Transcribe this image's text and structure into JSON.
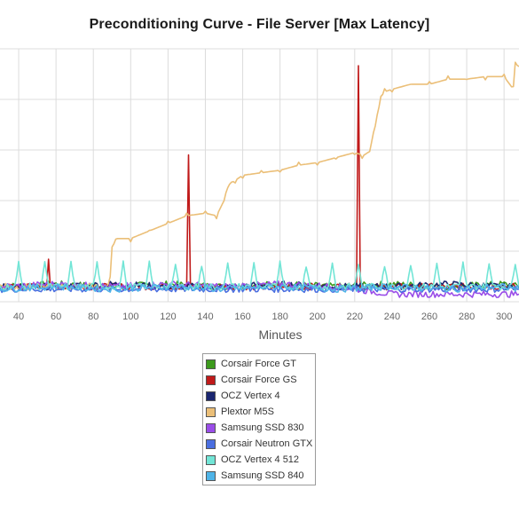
{
  "chart_data": {
    "type": "line",
    "title": "Preconditioning Curve - File Server [Max Latency]",
    "xlabel": "Minutes",
    "ylabel": "",
    "xlim": [
      30,
      308
    ],
    "ylim": [
      0,
      100
    ],
    "x_ticks": [
      40,
      60,
      80,
      100,
      120,
      140,
      160,
      180,
      200,
      220,
      240,
      260,
      280,
      300
    ],
    "grid": true,
    "legend_position": "bottom",
    "series": [
      {
        "name": "Corsair Force GT",
        "color": "#3c9a1c",
        "x": [
          30,
          60,
          90,
          120,
          150,
          180,
          210,
          240,
          270,
          300,
          308
        ],
        "y": [
          6,
          7,
          6,
          7,
          6,
          7,
          6,
          7,
          6,
          7,
          6
        ]
      },
      {
        "name": "Corsair Force GS",
        "color": "#c01a1a",
        "x": [
          30,
          55,
          56,
          57,
          90,
          130,
          131,
          132,
          133,
          150,
          180,
          221,
          222,
          223,
          224,
          250,
          308
        ],
        "y": [
          6,
          6,
          18,
          6,
          6,
          6,
          58,
          6,
          6,
          6,
          6,
          6,
          93,
          6,
          6,
          6,
          6
        ]
      },
      {
        "name": "OCZ Vertex 4",
        "color": "#1a2670",
        "x": [
          30,
          60,
          90,
          120,
          150,
          180,
          210,
          240,
          270,
          300,
          308
        ],
        "y": [
          6,
          6,
          7,
          6,
          6,
          7,
          6,
          6,
          7,
          6,
          6
        ]
      },
      {
        "name": "Plextor M5S",
        "color": "#ebbf78",
        "x": [
          30,
          88,
          89,
          90,
          91,
          92,
          100,
          110,
          120,
          130,
          140,
          146,
          150,
          152,
          154,
          156,
          160,
          170,
          180,
          190,
          200,
          210,
          220,
          224,
          226,
          228,
          230,
          232,
          234,
          236,
          240,
          250,
          260,
          270,
          280,
          290,
          300,
          305,
          306,
          308
        ],
        "y": [
          6,
          6,
          10,
          22,
          24,
          25,
          25,
          28,
          31,
          34,
          35,
          34,
          40,
          46,
          47,
          48,
          50,
          51,
          52,
          54,
          55,
          57,
          59,
          58,
          58,
          60,
          66,
          73,
          81,
          83,
          84,
          86,
          86,
          88,
          88,
          89,
          89,
          84,
          94,
          93
        ]
      },
      {
        "name": "Samsung SSD 830",
        "color": "#9a4de8",
        "x": [
          30,
          60,
          90,
          120,
          150,
          180,
          210,
          240,
          270,
          300,
          308
        ],
        "y": [
          6,
          7,
          6,
          7,
          6,
          7,
          6,
          3,
          3,
          3,
          3
        ]
      },
      {
        "name": "Corsair Neutron GTX",
        "color": "#4a6ee0",
        "x": [
          30,
          60,
          90,
          120,
          150,
          180,
          210,
          240,
          270,
          300,
          308
        ],
        "y": [
          5,
          5,
          5,
          5,
          5,
          5,
          5,
          5,
          5,
          5,
          5
        ]
      },
      {
        "name": "OCZ Vertex 4 512",
        "color": "#72e5d6",
        "x": [
          30,
          38,
          40,
          42,
          52,
          54,
          56,
          66,
          68,
          70,
          80,
          82,
          84,
          94,
          96,
          98,
          108,
          110,
          112,
          122,
          124,
          126,
          136,
          138,
          140,
          150,
          152,
          154,
          164,
          166,
          168,
          178,
          180,
          182,
          192,
          194,
          196,
          206,
          208,
          210,
          220,
          222,
          224,
          234,
          236,
          238,
          248,
          250,
          252,
          262,
          264,
          266,
          276,
          278,
          280,
          290,
          292,
          294,
          304,
          306,
          308
        ],
        "y": [
          6,
          6,
          15,
          6,
          6,
          16,
          6,
          6,
          15,
          6,
          6,
          15,
          6,
          6,
          15,
          6,
          6,
          15,
          6,
          6,
          15,
          6,
          6,
          15,
          6,
          6,
          15,
          6,
          6,
          15,
          6,
          6,
          15,
          6,
          6,
          15,
          6,
          6,
          15,
          6,
          6,
          15,
          6,
          6,
          15,
          6,
          6,
          15,
          6,
          6,
          15,
          6,
          6,
          15,
          6,
          6,
          15,
          6,
          6,
          15,
          6
        ]
      },
      {
        "name": "Samsung SSD 840",
        "color": "#4fb4e8",
        "x": [
          30,
          60,
          90,
          120,
          150,
          180,
          210,
          240,
          270,
          300,
          308
        ],
        "y": [
          5,
          6,
          5,
          6,
          5,
          6,
          5,
          6,
          5,
          6,
          5
        ]
      }
    ]
  }
}
